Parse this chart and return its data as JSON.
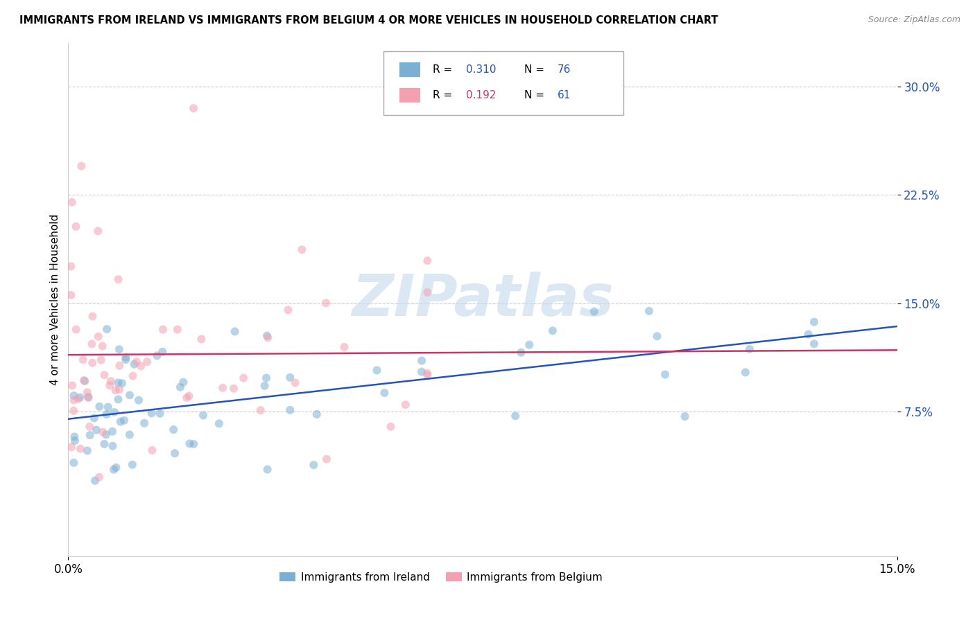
{
  "title": "IMMIGRANTS FROM IRELAND VS IMMIGRANTS FROM BELGIUM 4 OR MORE VEHICLES IN HOUSEHOLD CORRELATION CHART",
  "source": "Source: ZipAtlas.com",
  "ylabel": "4 or more Vehicles in Household",
  "xlabel_ireland": "Immigrants from Ireland",
  "xlabel_belgium": "Immigrants from Belgium",
  "xlim": [
    0.0,
    0.15
  ],
  "ylim": [
    -0.025,
    0.33
  ],
  "ytick_vals": [
    0.075,
    0.15,
    0.225,
    0.3
  ],
  "ytick_labels": [
    "7.5%",
    "15.0%",
    "22.5%",
    "30.0%"
  ],
  "xtick_vals": [
    0.0,
    0.15
  ],
  "xtick_labels": [
    "0.0%",
    "15.0%"
  ],
  "r_ireland": 0.31,
  "n_ireland": 76,
  "r_belgium": 0.192,
  "n_belgium": 61,
  "color_ireland": "#7bafd4",
  "color_belgium": "#f4a0b0",
  "regression_color_ireland": "#2255bb",
  "regression_color_belgium": "#cc3366",
  "watermark_text": "ZIPatlas",
  "watermark_color": "#c5d8ee",
  "legend_r_ireland": "R = 0.310",
  "legend_n_ireland": "N = 76",
  "legend_r_belgium": "R = 0.192",
  "legend_n_belgium": "N = 61"
}
